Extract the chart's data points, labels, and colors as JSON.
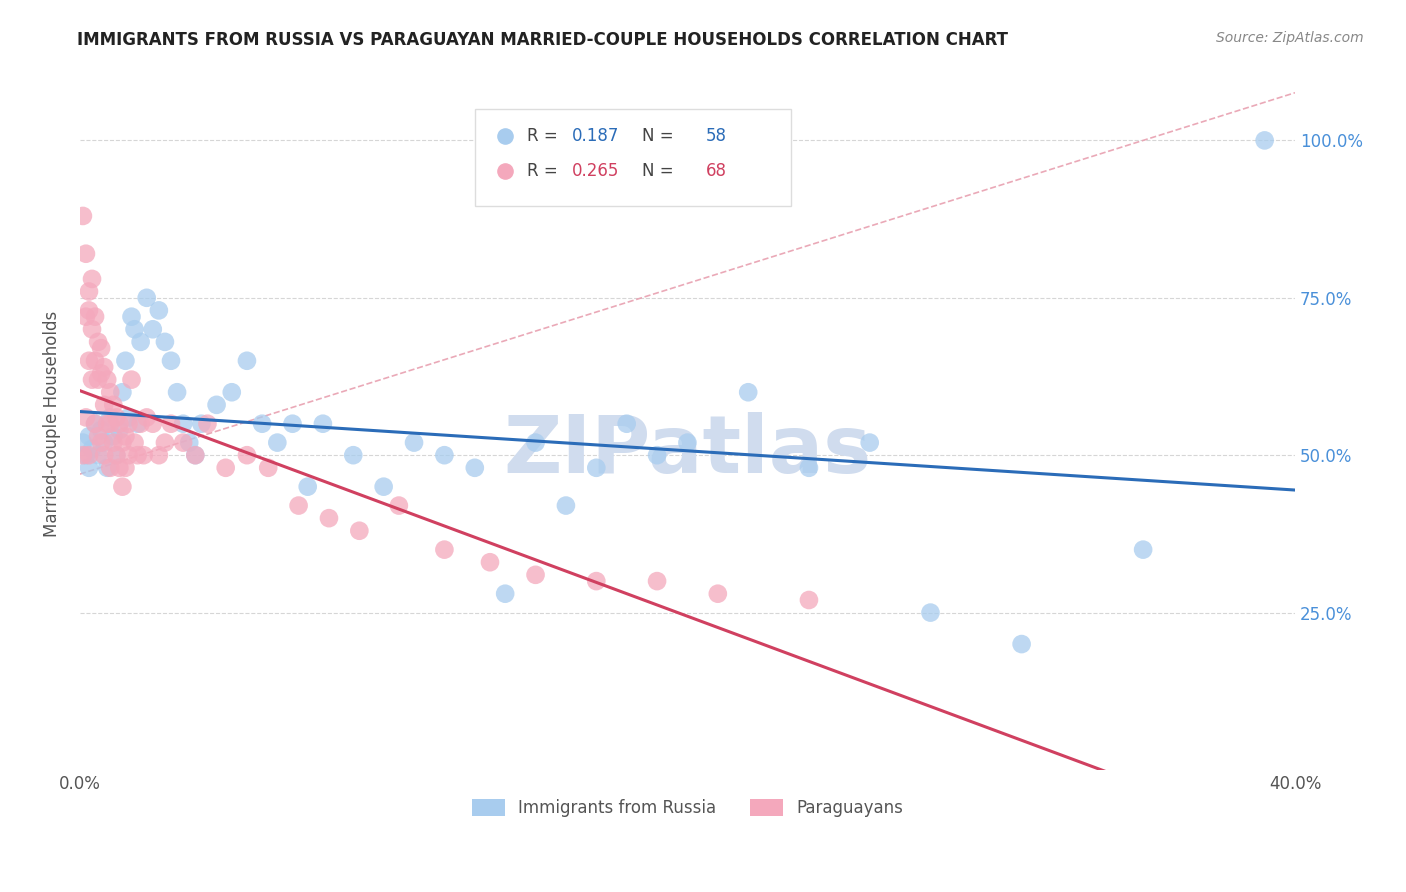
{
  "title": "IMMIGRANTS FROM RUSSIA VS PARAGUAYAN MARRIED-COUPLE HOUSEHOLDS CORRELATION CHART",
  "source": "Source: ZipAtlas.com",
  "ylabel": "Married-couple Households",
  "legend_blue_R": "0.187",
  "legend_blue_N": "58",
  "legend_pink_R": "0.265",
  "legend_pink_N": "68",
  "legend_label_blue": "Immigrants from Russia",
  "legend_label_pink": "Paraguayans",
  "blue_color": "#A8CCEE",
  "pink_color": "#F4A8BC",
  "blue_line_color": "#2B6CB8",
  "pink_line_color": "#D04060",
  "diag_line_color": "#E8A0B0",
  "watermark": "ZIPatlas",
  "watermark_color": "#D0DCEE",
  "xlim": [
    0.0,
    0.4
  ],
  "ylim": [
    0.0,
    1.1
  ],
  "blue_scatter_x": [
    0.001,
    0.002,
    0.003,
    0.003,
    0.004,
    0.005,
    0.006,
    0.007,
    0.008,
    0.009,
    0.01,
    0.011,
    0.012,
    0.013,
    0.014,
    0.015,
    0.016,
    0.017,
    0.018,
    0.019,
    0.02,
    0.022,
    0.024,
    0.026,
    0.028,
    0.03,
    0.032,
    0.034,
    0.036,
    0.038,
    0.04,
    0.045,
    0.05,
    0.055,
    0.06,
    0.065,
    0.07,
    0.075,
    0.08,
    0.09,
    0.1,
    0.11,
    0.12,
    0.13,
    0.14,
    0.15,
    0.16,
    0.17,
    0.18,
    0.19,
    0.2,
    0.22,
    0.24,
    0.26,
    0.28,
    0.31,
    0.35,
    0.39
  ],
  "blue_scatter_y": [
    0.52,
    0.5,
    0.53,
    0.48,
    0.51,
    0.55,
    0.5,
    0.54,
    0.52,
    0.48,
    0.56,
    0.53,
    0.5,
    0.54,
    0.6,
    0.65,
    0.56,
    0.72,
    0.7,
    0.55,
    0.68,
    0.75,
    0.7,
    0.73,
    0.68,
    0.65,
    0.6,
    0.55,
    0.52,
    0.5,
    0.55,
    0.58,
    0.6,
    0.65,
    0.55,
    0.52,
    0.55,
    0.45,
    0.55,
    0.5,
    0.45,
    0.52,
    0.5,
    0.48,
    0.28,
    0.52,
    0.42,
    0.48,
    0.55,
    0.5,
    0.52,
    0.6,
    0.48,
    0.52,
    0.25,
    0.2,
    0.35,
    1.0
  ],
  "pink_scatter_x": [
    0.001,
    0.001,
    0.002,
    0.002,
    0.002,
    0.003,
    0.003,
    0.003,
    0.003,
    0.004,
    0.004,
    0.004,
    0.005,
    0.005,
    0.005,
    0.006,
    0.006,
    0.006,
    0.007,
    0.007,
    0.007,
    0.008,
    0.008,
    0.008,
    0.009,
    0.009,
    0.01,
    0.01,
    0.01,
    0.011,
    0.011,
    0.012,
    0.012,
    0.013,
    0.013,
    0.014,
    0.014,
    0.015,
    0.015,
    0.016,
    0.016,
    0.017,
    0.018,
    0.019,
    0.02,
    0.021,
    0.022,
    0.024,
    0.026,
    0.028,
    0.03,
    0.034,
    0.038,
    0.042,
    0.048,
    0.055,
    0.062,
    0.072,
    0.082,
    0.092,
    0.105,
    0.12,
    0.135,
    0.15,
    0.17,
    0.19,
    0.21,
    0.24
  ],
  "pink_scatter_y": [
    0.88,
    0.5,
    0.82,
    0.72,
    0.56,
    0.76,
    0.73,
    0.65,
    0.5,
    0.78,
    0.7,
    0.62,
    0.72,
    0.65,
    0.55,
    0.68,
    0.62,
    0.53,
    0.67,
    0.63,
    0.52,
    0.64,
    0.58,
    0.5,
    0.62,
    0.55,
    0.6,
    0.55,
    0.48,
    0.58,
    0.52,
    0.56,
    0.5,
    0.55,
    0.48,
    0.52,
    0.45,
    0.53,
    0.48,
    0.55,
    0.5,
    0.62,
    0.52,
    0.5,
    0.55,
    0.5,
    0.56,
    0.55,
    0.5,
    0.52,
    0.55,
    0.52,
    0.5,
    0.55,
    0.48,
    0.5,
    0.48,
    0.42,
    0.4,
    0.38,
    0.42,
    0.35,
    0.33,
    0.31,
    0.3,
    0.3,
    0.28,
    0.27
  ]
}
